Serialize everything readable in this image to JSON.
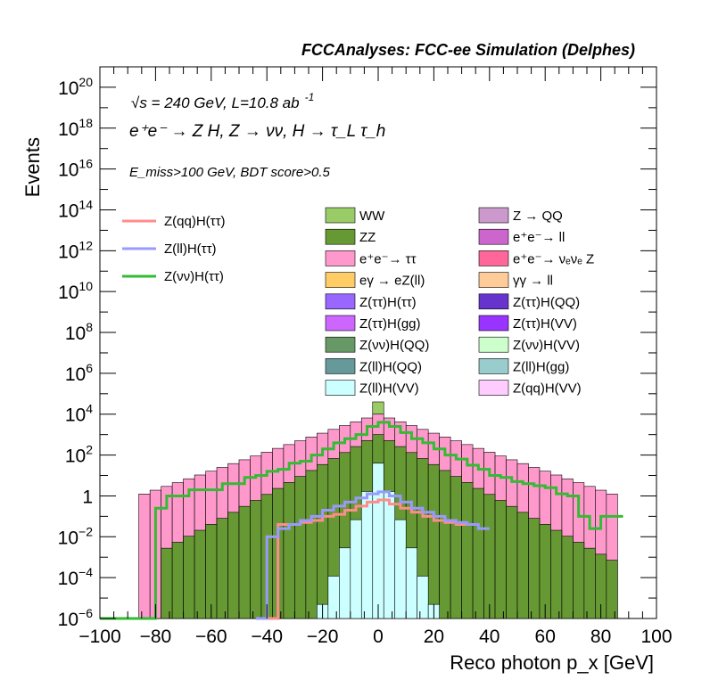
{
  "header": "FCCAnalyses: FCC-ee Simulation (Delphes)",
  "annotations": {
    "line1": "√s = 240 GeV, L=10.8 ab",
    "line1_sup": "-1",
    "line2": "e⁺e⁻ → Z H, Z → νν, H → τ_L τ_h",
    "line3": "E_miss>100 GeV, BDT score>0.5"
  },
  "chart_data": {
    "type": "histogram",
    "xlabel": "Reco photon p_x [GeV]",
    "ylabel": "Events",
    "xlim": [
      -100,
      100
    ],
    "ylim": [
      1e-06,
      1e+21
    ],
    "log_y": true,
    "x_ticks": [
      "−100",
      "−80",
      "−60",
      "−40",
      "−20",
      "0",
      "20",
      "40",
      "60",
      "80",
      "100"
    ],
    "y_ticks": [
      {
        "base": "10",
        "exp": "20",
        "value": 1e+20
      },
      {
        "base": "10",
        "exp": "18",
        "value": 1e+18
      },
      {
        "base": "10",
        "exp": "16",
        "value": 1e+16
      },
      {
        "base": "10",
        "exp": "14",
        "value": 100000000000000.0
      },
      {
        "base": "10",
        "exp": "12",
        "value": 1000000000000.0
      },
      {
        "base": "10",
        "exp": "10",
        "value": 10000000000.0
      },
      {
        "base": "10",
        "exp": "8",
        "value": 100000000.0
      },
      {
        "base": "10",
        "exp": "6",
        "value": 1000000.0
      },
      {
        "base": "10",
        "exp": "4",
        "value": 10000.0
      },
      {
        "base": "10",
        "exp": "2",
        "value": 100.0
      },
      {
        "base": "1",
        "exp": "",
        "value": 1
      },
      {
        "base": "10",
        "exp": "−2",
        "value": 0.01
      },
      {
        "base": "10",
        "exp": "−4",
        "value": 0.0001
      },
      {
        "base": "10",
        "exp": "−6",
        "value": 1e-06
      }
    ],
    "stack_envelopes": [
      {
        "name": "WW",
        "color": "#99cc66",
        "x_range": [
          -50,
          50
        ],
        "log10_peak": 4.6,
        "log10_min": -6,
        "half_width": 50
      },
      {
        "name": "ee→ττ",
        "color": "#ff99cc",
        "x_range": [
          -86,
          86
        ],
        "log10_peak": 4.0,
        "log10_min": 0.0,
        "half_width": 86
      },
      {
        "name": "ZZ",
        "color": "#669933",
        "x_range": [
          -78,
          86
        ],
        "log10_peak": 3.0,
        "log10_min": -3.0,
        "half_width": 82
      },
      {
        "name": "Z(ll)H(VV)",
        "color": "#ccffff",
        "x_range": [
          -22,
          22
        ],
        "log10_peak": 1.6,
        "log10_min": -6,
        "half_width": 22
      }
    ],
    "legend_left": [
      {
        "name": "Z(qq)H(ττ)",
        "color": "#ff8c8c"
      },
      {
        "name": "Z(ll)H(ττ)",
        "color": "#9999ff"
      },
      {
        "name": "Z(νν)H(ττ)",
        "color": "#33bb33"
      }
    ],
    "legend_fill": [
      {
        "name": "WW",
        "color": "#99cc66"
      },
      {
        "name": "Z → QQ",
        "color": "#cc99cc"
      },
      {
        "name": "ZZ",
        "color": "#669933"
      },
      {
        "name": "e⁺e⁻→ ll",
        "color": "#cc66cc"
      },
      {
        "name": "e⁺e⁻→ ττ",
        "color": "#ff99cc"
      },
      {
        "name": "e⁺e⁻→ νₑνₑ Z",
        "color": "#ff6699"
      },
      {
        "name": "eγ → eZ(ll)",
        "color": "#ffcc66"
      },
      {
        "name": "γγ → ll",
        "color": "#ffcc99"
      },
      {
        "name": "Z(ττ)H(ττ)",
        "color": "#9966ff"
      },
      {
        "name": "Z(ττ)H(QQ)",
        "color": "#6633cc"
      },
      {
        "name": "Z(ττ)H(gg)",
        "color": "#cc66ff"
      },
      {
        "name": "Z(ττ)H(VV)",
        "color": "#9933ff"
      },
      {
        "name": "Z(νν)H(QQ)",
        "color": "#669966"
      },
      {
        "name": "Z(νν)H(VV)",
        "color": "#ccffcc"
      },
      {
        "name": "Z(ll)H(QQ)",
        "color": "#669999"
      },
      {
        "name": "Z(ll)H(gg)",
        "color": "#99cccc"
      },
      {
        "name": "Z(ll)H(VV)",
        "color": "#ccffff"
      },
      {
        "name": "Z(qq)H(VV)",
        "color": "#ffccff"
      }
    ],
    "signal_lines": [
      {
        "name": "Z(νν)H(ττ)",
        "color": "#33bb33",
        "x": [
          -100,
          -80,
          -76,
          -72,
          -68,
          -64,
          -60,
          -56,
          -52,
          -48,
          -44,
          -40,
          -36,
          -32,
          -28,
          -24,
          -20,
          -16,
          -12,
          -8,
          -4,
          0,
          4,
          8,
          12,
          16,
          20,
          24,
          28,
          32,
          36,
          40,
          44,
          48,
          52,
          56,
          60,
          64,
          68,
          72,
          76,
          80,
          84,
          88
        ],
        "log10_y": [
          -6.5,
          -0.6,
          0.0,
          0.0,
          0.3,
          0.3,
          0.3,
          0.6,
          0.6,
          0.9,
          1.0,
          1.2,
          1.3,
          1.6,
          1.7,
          2.0,
          2.3,
          2.6,
          2.8,
          3.0,
          3.4,
          3.6,
          3.4,
          3.1,
          2.8,
          2.6,
          2.3,
          2.0,
          1.8,
          1.5,
          1.3,
          1.0,
          0.9,
          0.7,
          0.6,
          0.5,
          0.4,
          0.1,
          0.0,
          -1.0,
          -1.6,
          -1.0,
          -1.0,
          -6.5
        ]
      },
      {
        "name": "Z(qq)H(ττ)",
        "color": "#ff8c8c",
        "x": [
          -40,
          -36,
          -32,
          -28,
          -24,
          -20,
          -16,
          -12,
          -8,
          -4,
          0,
          4,
          8,
          12,
          16,
          20,
          24,
          28,
          32
        ],
        "log10_y": [
          -6.5,
          -1.4,
          -1.4,
          -1.3,
          -1.2,
          -1.0,
          -0.9,
          -0.7,
          -0.5,
          -0.3,
          -0.2,
          -0.4,
          -0.6,
          -0.8,
          -1.0,
          -1.2,
          -1.3,
          -1.4,
          -6.5
        ]
      },
      {
        "name": "Z(ll)H(ττ)",
        "color": "#9999ff",
        "x": [
          -44,
          -40,
          -36,
          -32,
          -28,
          -24,
          -20,
          -16,
          -12,
          -8,
          -4,
          0,
          4,
          8,
          12,
          16,
          20,
          24,
          28,
          32,
          36,
          40
        ],
        "log10_y": [
          -6.5,
          -2.0,
          -1.6,
          -1.4,
          -1.2,
          -1.0,
          -0.7,
          -0.5,
          -0.3,
          -0.1,
          0.1,
          0.2,
          0.0,
          -0.3,
          -0.6,
          -0.8,
          -1.0,
          -1.2,
          -1.3,
          -1.4,
          -1.6,
          -6.5
        ]
      }
    ]
  }
}
